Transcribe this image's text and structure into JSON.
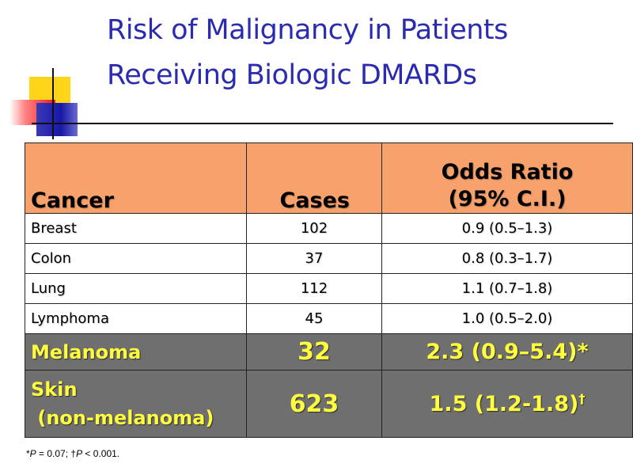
{
  "title": {
    "line1": "Risk of Malignancy in Patients",
    "line2": "Receiving Biologic DMARDs"
  },
  "colors": {
    "title": "#2b2bb0",
    "header_bg": "#f7a26d",
    "highlight_bg": "#6f6f6f",
    "highlight_text": "#ffff40"
  },
  "table": {
    "headers": {
      "cancer": "Cancer",
      "cases": "Cases",
      "odds_line1": "Odds Ratio",
      "odds_line2": "(95% C.I.)"
    },
    "rows": [
      {
        "cancer": "Breast",
        "cases": "102",
        "odds": "0.9 (0.5–1.3)"
      },
      {
        "cancer": "Colon",
        "cases": "37",
        "odds": "0.8 (0.3–1.7)"
      },
      {
        "cancer": "Lung",
        "cases": "112",
        "odds": "1.1 (0.7–1.8)"
      },
      {
        "cancer": "Lymphoma",
        "cases": "45",
        "odds": "1.0 (0.5–2.0)"
      }
    ],
    "highlight_rows": [
      {
        "cancer_line1": "Melanoma",
        "cases": "32",
        "odds": "2.3 (0.9–5.4)",
        "mark": "*"
      },
      {
        "cancer_line1": "Skin",
        "cancer_line2": " (non-melanoma)",
        "cases": "623",
        "odds": "1.5 (1.2-1.8)",
        "mark": "†"
      }
    ]
  },
  "footnote": {
    "star": "*",
    "p1": "P",
    "v1": " = 0.07; ",
    "dagger": "†",
    "p2": "P",
    "v2": " < 0.001."
  }
}
